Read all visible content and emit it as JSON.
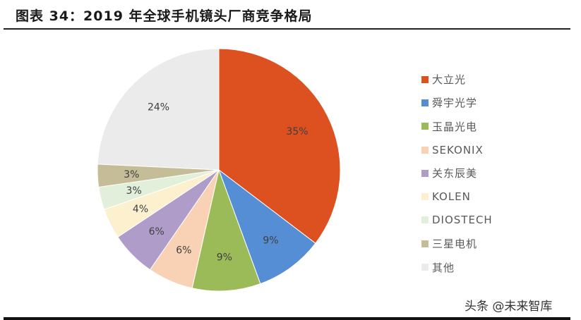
{
  "header": {
    "title": "图表 34：2019 年全球手机镜头厂商竞争格局"
  },
  "chart_data": {
    "type": "pie",
    "title": "2019年全球手机镜头厂商竞争格局",
    "start_angle": "12 o'clock",
    "direction": "clockwise",
    "categories": [
      "大立光",
      "舜宇光学",
      "玉晶光电",
      "SEKONIX",
      "关东辰美",
      "KOLEN",
      "DIOSTECH",
      "三星电机",
      "其他"
    ],
    "values": [
      35,
      9,
      9,
      6,
      6,
      4,
      3,
      3,
      24
    ],
    "labels": [
      "35%",
      "9%",
      "9%",
      "6%",
      "6%",
      "4%",
      "3%",
      "3%",
      "24%"
    ],
    "colors": [
      "#DD5020",
      "#558ED5",
      "#9BBB59",
      "#F9D1B4",
      "#B09CC8",
      "#FDF0CF",
      "#E2EFDA",
      "#C4BD97",
      "#EBEBEB"
    ],
    "legend_position": "right"
  },
  "legend": {
    "items": [
      {
        "label": "大立光",
        "color": "#DD5020"
      },
      {
        "label": "舜宇光学",
        "color": "#558ED5"
      },
      {
        "label": "玉晶光电",
        "color": "#9BBB59"
      },
      {
        "label": "SEKONIX",
        "color": "#F9D1B4"
      },
      {
        "label": "关东辰美",
        "color": "#B09CC8"
      },
      {
        "label": "KOLEN",
        "color": "#FDF0CF"
      },
      {
        "label": "DIOSTECH",
        "color": "#E2EFDA"
      },
      {
        "label": "三星电机",
        "color": "#C4BD97"
      },
      {
        "label": "其他",
        "color": "#EBEBEB"
      }
    ]
  },
  "watermark": {
    "text": "头条 @未来智库"
  }
}
